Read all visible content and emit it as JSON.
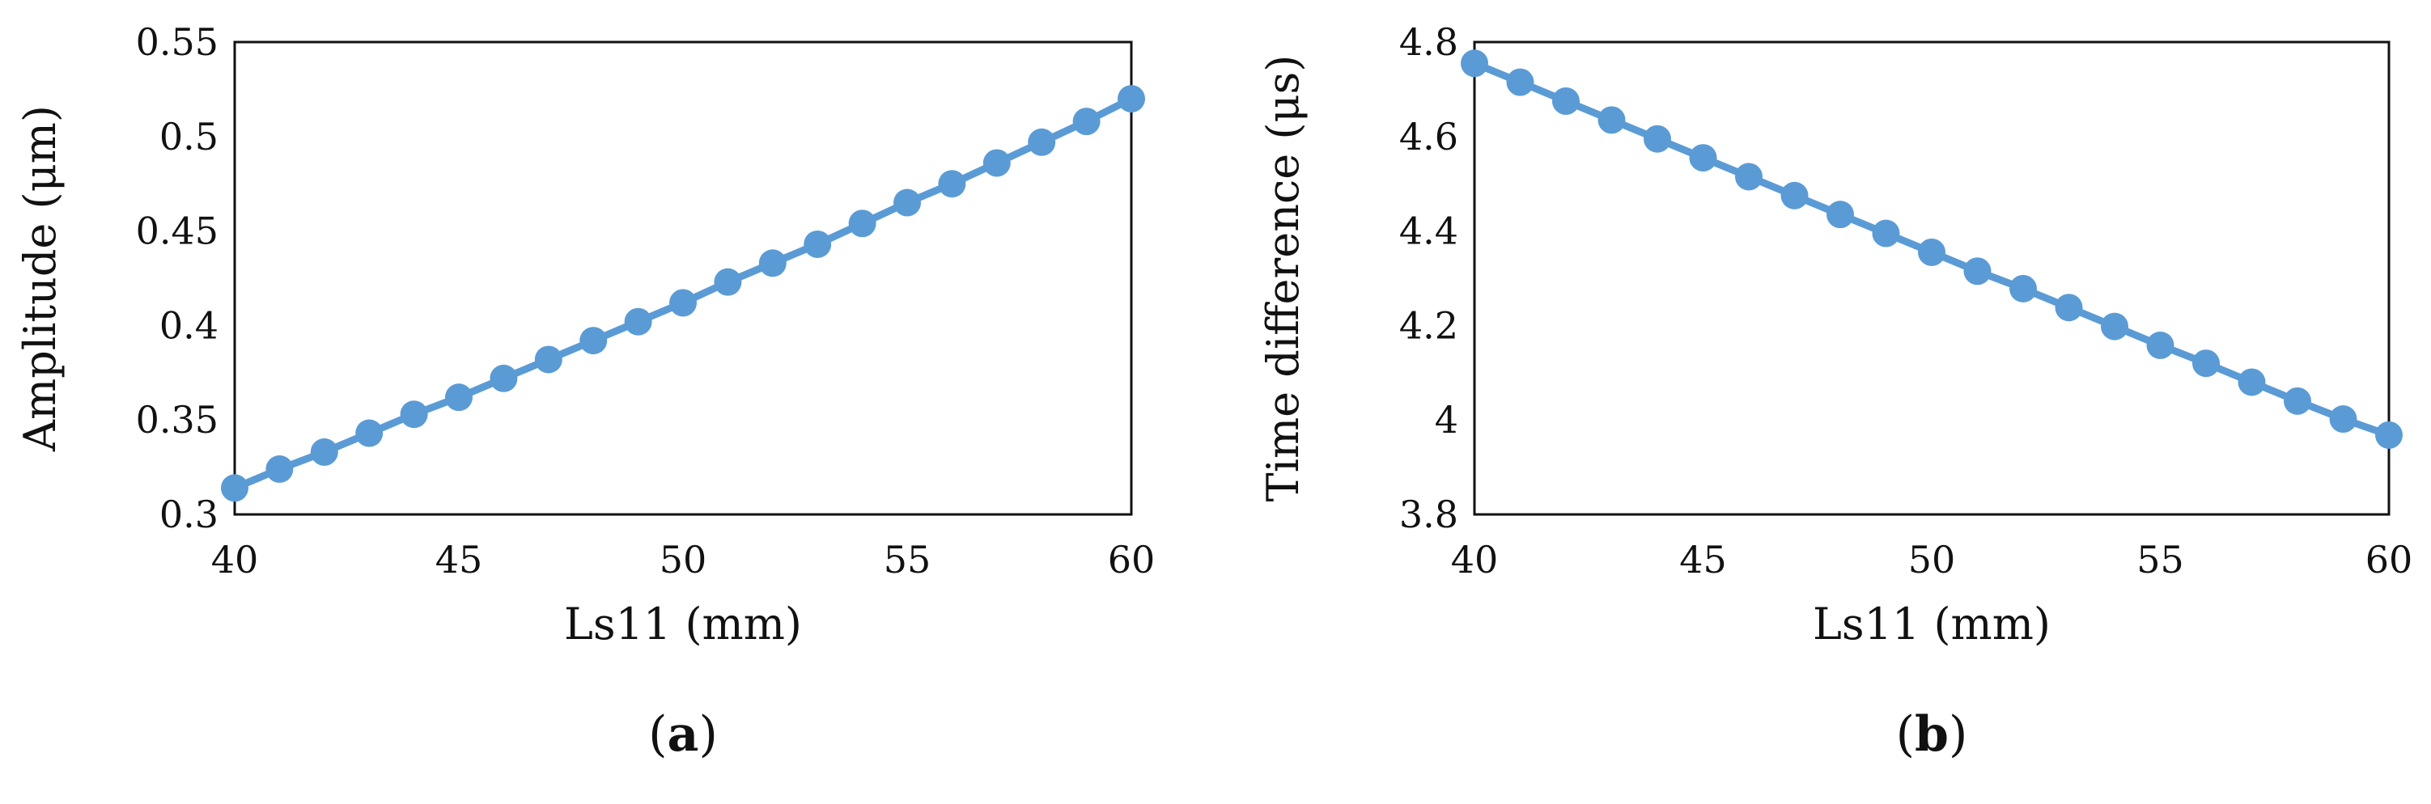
{
  "chart_data": [
    {
      "type": "line",
      "panel_label": "a",
      "xlabel": "Ls11 (mm)",
      "ylabel": "Amplitude (μm)",
      "xlim": [
        40,
        60
      ],
      "ylim": [
        0.3,
        0.55
      ],
      "xticks": [
        "40",
        "45",
        "50",
        "55",
        "60"
      ],
      "yticks": [
        "0.3",
        "0.35",
        "0.4",
        "0.45",
        "0.5",
        "0.55"
      ],
      "x": [
        40,
        41,
        42,
        43,
        44,
        45,
        46,
        47,
        48,
        49,
        50,
        51,
        52,
        53,
        54,
        55,
        56,
        57,
        58,
        59,
        60
      ],
      "series": [
        {
          "values": [
            0.314,
            0.324,
            0.333,
            0.343,
            0.353,
            0.362,
            0.372,
            0.382,
            0.392,
            0.402,
            0.412,
            0.423,
            0.433,
            0.443,
            0.454,
            0.465,
            0.475,
            0.486,
            0.497,
            0.508,
            0.52
          ],
          "color": "#5b9bd5"
        }
      ],
      "grid": false
    },
    {
      "type": "line",
      "panel_label": "b",
      "xlabel": "Ls11 (mm)",
      "ylabel": "Time difference (μs)",
      "xlim": [
        40,
        60
      ],
      "ylim": [
        3.8,
        4.8
      ],
      "xticks": [
        "40",
        "45",
        "50",
        "55",
        "60"
      ],
      "yticks": [
        "3.8",
        "4",
        "4.2",
        "4.4",
        "4.6",
        "4.8"
      ],
      "x": [
        40,
        41,
        42,
        43,
        44,
        45,
        46,
        47,
        48,
        49,
        50,
        51,
        52,
        53,
        54,
        55,
        56,
        57,
        58,
        59,
        60
      ],
      "series": [
        {
          "values": [
            4.755,
            4.715,
            4.675,
            4.635,
            4.595,
            4.555,
            4.515,
            4.475,
            4.435,
            4.395,
            4.355,
            4.315,
            4.278,
            4.238,
            4.198,
            4.158,
            4.12,
            4.08,
            4.04,
            4.002,
            3.968
          ],
          "color": "#5b9bd5"
        }
      ],
      "grid": false
    }
  ]
}
